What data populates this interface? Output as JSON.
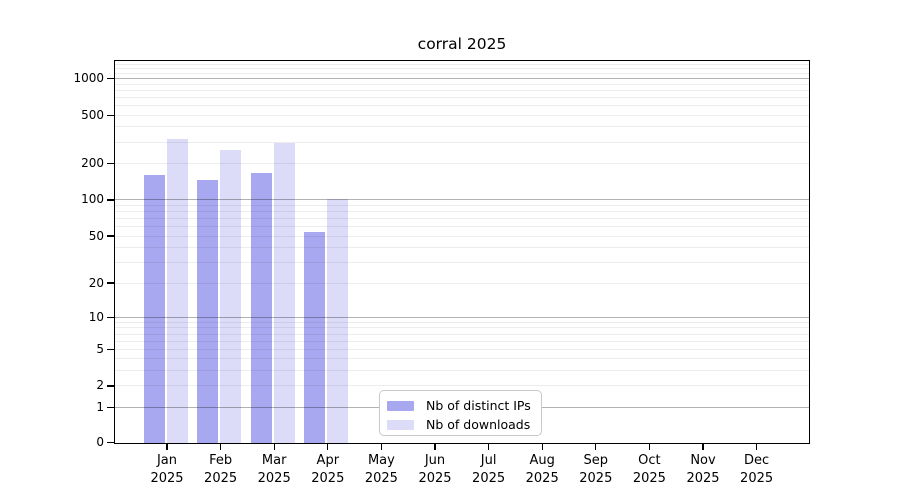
{
  "figure": {
    "background_color": "#ffffff"
  },
  "chart_data": {
    "type": "bar",
    "title": "corral 2025",
    "categories": [
      "Jan",
      "Feb",
      "Mar",
      "Apr",
      "May",
      "Jun",
      "Jul",
      "Aug",
      "Sep",
      "Oct",
      "Nov",
      "Dec"
    ],
    "x_year_label": "2025",
    "series": [
      {
        "name": "Nb of distinct IPs",
        "color": "#a8a8f0",
        "values": [
          161,
          148,
          169,
          55,
          0,
          0,
          0,
          0,
          0,
          0,
          0,
          0
        ]
      },
      {
        "name": "Nb of downloads",
        "color": "#dcdcf9",
        "values": [
          320,
          261,
          296,
          103,
          0,
          0,
          0,
          0,
          0,
          0,
          0,
          0
        ]
      }
    ],
    "xlabel": "",
    "ylabel": "",
    "y_scale": "log1p",
    "ylim": [
      0,
      1400
    ],
    "y_ticks": [
      1000,
      500,
      200,
      100,
      50,
      20,
      10,
      5,
      2,
      1,
      0
    ],
    "grid": {
      "enabled": true,
      "major_values": [
        1,
        10,
        100,
        1000
      ],
      "minor_values": [
        2,
        3,
        4,
        5,
        6,
        7,
        8,
        9,
        20,
        30,
        40,
        50,
        60,
        70,
        80,
        90,
        200,
        300,
        400,
        500,
        600,
        700,
        800,
        900,
        1100,
        1200,
        1300
      ],
      "major_color": "rgba(0,0,0,0.30)",
      "minor_color": "rgba(0,0,0,0.07)"
    },
    "legend_position": "inside-bottom-center",
    "axis_color": "#000000",
    "text_color": "#000000"
  }
}
